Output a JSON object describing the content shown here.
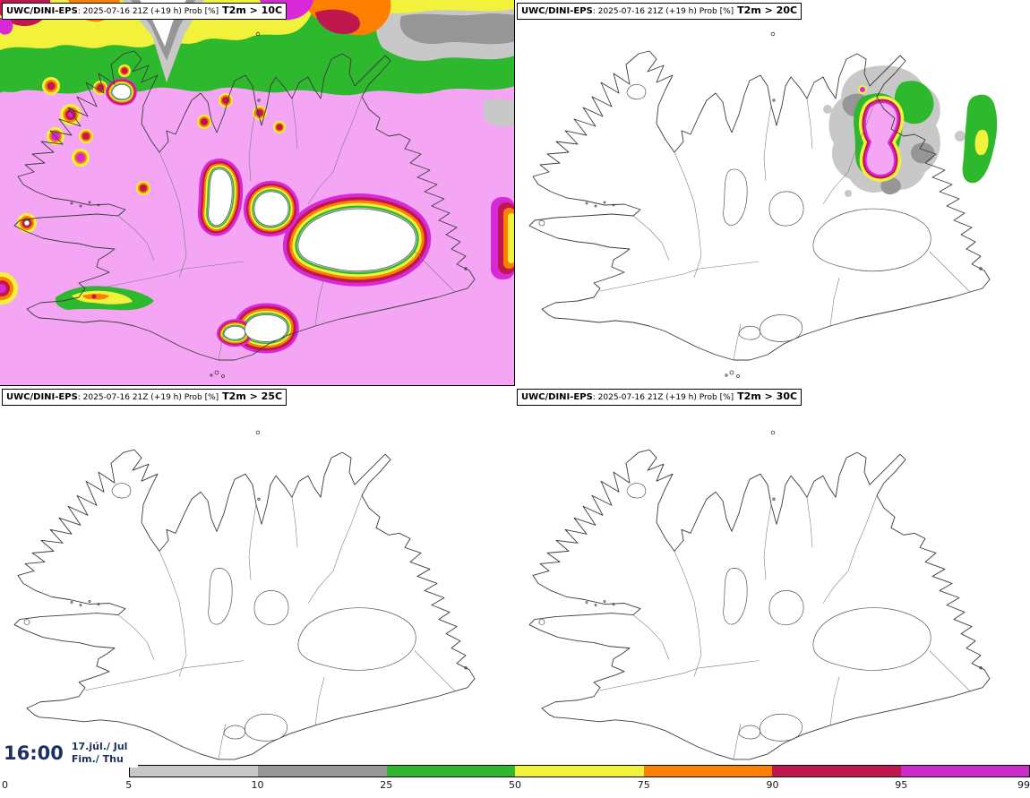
{
  "panels": [
    {
      "model": "UWC/DINI-EPS",
      "info": ": 2025-07-16 21Z (+19 h) Prob [%]",
      "title": "T2m > 10C"
    },
    {
      "model": "UWC/DINI-EPS",
      "info": ": 2025-07-16 21Z (+19 h) Prob [%]",
      "title": "T2m > 20C"
    },
    {
      "model": "UWC/DINI-EPS",
      "info": ": 2025-07-16 21Z (+19 h) Prob [%]",
      "title": "T2m > 25C"
    },
    {
      "model": "UWC/DINI-EPS",
      "info": ": 2025-07-16 21Z (+19 h) Prob [%]",
      "title": "T2m > 30C"
    }
  ],
  "legend": {
    "tick_labels": [
      "0",
      "5",
      "10",
      "25",
      "50",
      "75",
      "90",
      "95",
      "99"
    ],
    "segment_colors": [
      "#ffffff",
      "#c8c8c8",
      "#969696",
      "#2eb82e",
      "#f2f23c",
      "#fc7f00",
      "#c0184e",
      "#cc2bcc"
    ]
  },
  "timebox": {
    "time": "16:00",
    "date": "17.júl./ Jul",
    "day": "Fim./ Thu"
  },
  "palette": {
    "pink": "#f4a6f4",
    "mag": "#d829d8",
    "crim": "#c0184e",
    "org": "#fc7f00",
    "yel": "#f2f23c",
    "grn": "#2eb82e",
    "lgray": "#c8c8c8",
    "dgray": "#969696",
    "navy": "#1d3160"
  }
}
